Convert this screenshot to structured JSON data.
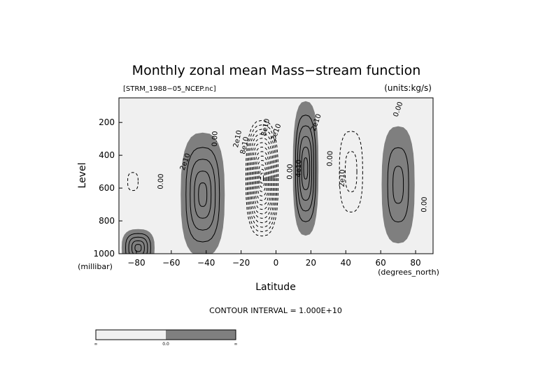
{
  "title": "Monthly zonal mean Mass−stream function",
  "file_label": "[STRM_1988−05_NCEP.nc]",
  "units_label": "(units:kg/s)",
  "contour_interval_text": "CONTOUR INTERVAL = 1.000E+10",
  "colors": {
    "positive_fill": "#7f7f7f",
    "negative_fill": "#f0f0f0",
    "line": "#000000",
    "frame": "#000000"
  },
  "chart_data": {
    "type": "contour",
    "xlabel": "Latitude",
    "ylabel": "Level",
    "x_unit_label": "(degrees_north)",
    "y_unit_label": "(millibar)",
    "xlim": [
      -90,
      90
    ],
    "ylim": [
      1000,
      50
    ],
    "x_ticks": [
      {
        "value": -80,
        "label": "−80"
      },
      {
        "value": -60,
        "label": "−60"
      },
      {
        "value": -40,
        "label": "−40"
      },
      {
        "value": -20,
        "label": "−20"
      },
      {
        "value": 0,
        "label": "0"
      },
      {
        "value": 20,
        "label": "20"
      },
      {
        "value": 40,
        "label": "40"
      },
      {
        "value": 60,
        "label": "60"
      },
      {
        "value": 80,
        "label": "80"
      }
    ],
    "y_ticks": [
      {
        "value": 200,
        "label": "200"
      },
      {
        "value": 400,
        "label": "400"
      },
      {
        "value": 600,
        "label": "600"
      },
      {
        "value": 800,
        "label": "800"
      },
      {
        "value": 1000,
        "label": "1000"
      }
    ],
    "contour_interval": 10000000000.0,
    "field_cells": [
      {
        "id": "sh-polar-positive",
        "sign": 1,
        "lat": -79,
        "lev": 965,
        "dlat": 9,
        "dlev": 110,
        "amp": 4.5,
        "lines": 4,
        "skip": 0
      },
      {
        "id": "sh-ferrel-positive",
        "sign": 1,
        "lat": -42,
        "lev": 640,
        "dlat": 12,
        "dlev": 360,
        "amp": 4.6,
        "lines": 4,
        "skip": 0
      },
      {
        "id": "sh-hadley-negative",
        "sign": -1,
        "lat": -8,
        "lev": 540,
        "dlat": 10,
        "dlev": 380,
        "amp": 14.5,
        "lines": 13,
        "skip": 0
      },
      {
        "id": "nh-hadley-positive",
        "sign": 1,
        "lat": 17,
        "lev": 480,
        "dlat": 7,
        "dlev": 390,
        "amp": 5.8,
        "lines": 5,
        "skip": 0
      },
      {
        "id": "nh-ferrel-negative",
        "sign": -1,
        "lat": 43,
        "lev": 500,
        "dlat": 10,
        "dlev": 370,
        "amp": 2.6,
        "lines": 2,
        "skip": 0
      },
      {
        "id": "nh-polar-positive",
        "sign": 1,
        "lat": 70,
        "lev": 580,
        "dlat": 9,
        "dlev": 340,
        "amp": 2.6,
        "lines": 2,
        "skip": 0
      },
      {
        "id": "sh-weak-negative",
        "sign": -1,
        "lat": -82,
        "lev": 560,
        "dlat": 6,
        "dlev": 110,
        "amp": 1.6,
        "lines": 1,
        "skip": 0
      }
    ],
    "contour_labels": [
      {
        "text": "0.00",
        "lat": -66,
        "lev": 560,
        "rotate": -88
      },
      {
        "text": "2e10",
        "lat": -52,
        "lev": 440,
        "rotate": -70
      },
      {
        "text": "0.00",
        "lat": -35,
        "lev": 300,
        "rotate": -88
      },
      {
        "text": "2e10",
        "lat": -22,
        "lev": 300,
        "rotate": -78
      },
      {
        "text": "8e10",
        "lat": -18,
        "lev": 340,
        "rotate": -78
      },
      {
        "text": "8e10",
        "lat": -6,
        "lev": 230,
        "rotate": -78
      },
      {
        "text": "2e10",
        "lat": 0,
        "lev": 260,
        "rotate": -70
      },
      {
        "text": "0.00",
        "lat": 8,
        "lev": 500,
        "rotate": -88
      },
      {
        "text": "2e10",
        "lat": 23,
        "lev": 200,
        "rotate": -70
      },
      {
        "text": "4e10",
        "lat": 13,
        "lev": 480,
        "rotate": -88
      },
      {
        "text": "0.00",
        "lat": 31,
        "lev": 420,
        "rotate": -88
      },
      {
        "text": "2e10",
        "lat": 38,
        "lev": 540,
        "rotate": -88
      },
      {
        "text": "0.00",
        "lat": 70,
        "lev": 120,
        "rotate": -70
      },
      {
        "text": "0.00",
        "lat": 85,
        "lev": 700,
        "rotate": -88
      }
    ]
  },
  "colorbar": {
    "segments": [
      {
        "color": "#f0f0f0"
      },
      {
        "color": "#7f7f7f"
      }
    ],
    "labels": [
      "∞",
      "0.0",
      "∞"
    ]
  }
}
